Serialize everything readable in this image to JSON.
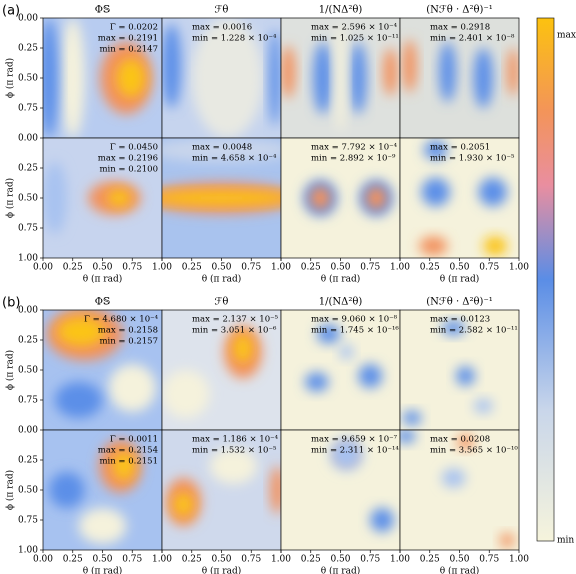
{
  "chart_data": {
    "type": "heatmap-grid",
    "xlabel": "θ (π rad)",
    "ylabel": "ϕ (π rad)",
    "xlim": [
      0,
      1
    ],
    "ylim": [
      0,
      1
    ],
    "yinvert": true,
    "xticks": [
      {
        "value": 0,
        "label": "0.00"
      },
      {
        "value": 0.25,
        "label": "0.25"
      },
      {
        "value": 0.5,
        "label": "0.50"
      },
      {
        "value": 0.75,
        "label": "0.75"
      },
      {
        "value": 1,
        "label": "1.00"
      }
    ],
    "yticks": [
      {
        "value": 0,
        "label": "0.00"
      },
      {
        "value": 0.25,
        "label": "0.25"
      },
      {
        "value": 0.5,
        "label": "0.50"
      },
      {
        "value": 0.75,
        "label": "0.75"
      },
      {
        "value": 1,
        "label": "1.00"
      }
    ],
    "colorbar": {
      "max": "max",
      "min": "min"
    },
    "column_titles": [
      "Φ𝕊",
      "ℱθ",
      "1/(NΔ²θ)",
      "(Nℱθ · Δ²θ)⁻¹"
    ],
    "groups": [
      {
        "label": "(a)",
        "rows": [
          [
            [
              "Γ = 0.0202",
              "max = 0.2191",
              "min = 0.2147"
            ],
            [
              "max = 0.0016",
              "min = 1.228 × 10⁻⁴"
            ],
            [
              "max = 2.596 × 10⁻⁴",
              "min = 1.025 × 10⁻¹¹"
            ],
            [
              "max = 0.2918",
              "min = 2.401 × 10⁻⁸"
            ]
          ],
          [
            [
              "Γ = 0.0450",
              "max = 0.2196",
              "min = 0.2100"
            ],
            [
              "max = 0.0048",
              "min = 4.658 × 10⁻⁴"
            ],
            [
              "max = 7.792 × 10⁻⁴",
              "min = 2.892 × 10⁻⁹"
            ],
            [
              "max = 0.2051",
              "min = 1.930 × 10⁻⁵"
            ]
          ]
        ]
      },
      {
        "label": "(b)",
        "rows": [
          [
            [
              "Γ = 4.680 × 10⁻⁴",
              "max = 0.2158",
              "min = 0.2157"
            ],
            [
              "max = 2.137 × 10⁻⁵",
              "min = 3.051 × 10⁻⁶"
            ],
            [
              "max = 9.060 × 10⁻⁸",
              "min = 1.745 × 10⁻¹⁶"
            ],
            [
              "max = 0.0123",
              "min = 2.582 × 10⁻¹¹"
            ]
          ],
          [
            [
              "Γ = 0.0011",
              "max = 0.2154",
              "min = 0.2151"
            ],
            [
              "max = 1.186 × 10⁻⁴",
              "min = 1.532 × 10⁻⁵"
            ],
            [
              "max = 9.659 × 10⁻⁷",
              "min = 2.311 × 10⁻¹⁴"
            ],
            [
              "max = 0.0208",
              "min = 3.565 × 10⁻¹⁰"
            ]
          ]
        ]
      }
    ]
  }
}
